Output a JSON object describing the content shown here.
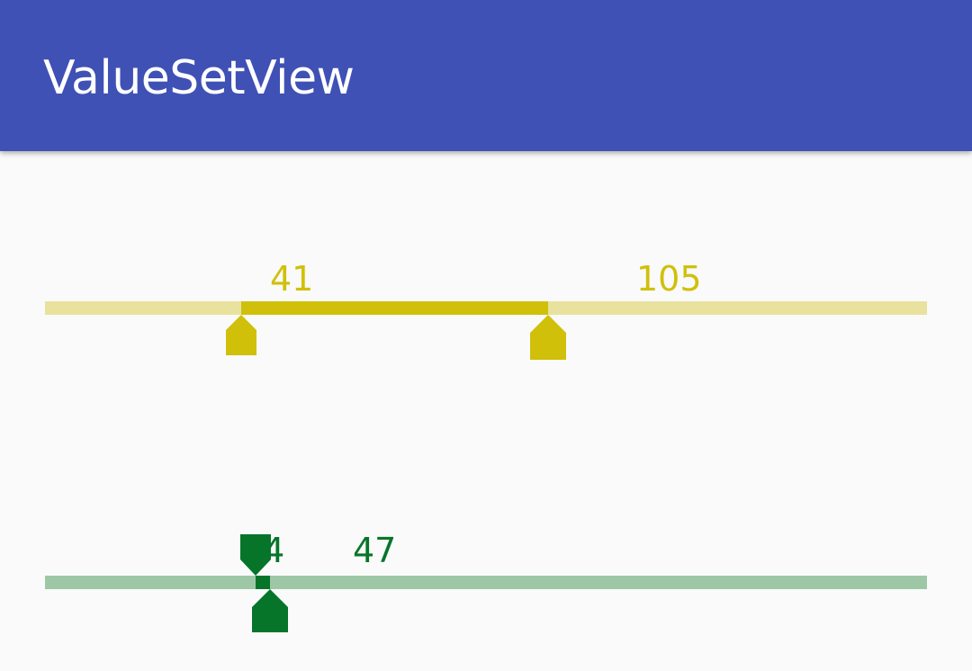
{
  "app_bar": {
    "title": "ValueSetView",
    "color": "#3f51b5"
  },
  "range_yellow": {
    "min": 0,
    "max": 184,
    "low_value": 41,
    "high_value": 105,
    "low_label": "41",
    "high_label": "105",
    "accent_color": "#d0c00a",
    "track_color": "#e8e29e"
  },
  "range_green": {
    "min": 0,
    "max": 184,
    "low_value": 44,
    "high_value": 47,
    "low_label": "44",
    "high_label": "47",
    "accent_color": "#06752a",
    "track_color": "#9ec8a5"
  }
}
